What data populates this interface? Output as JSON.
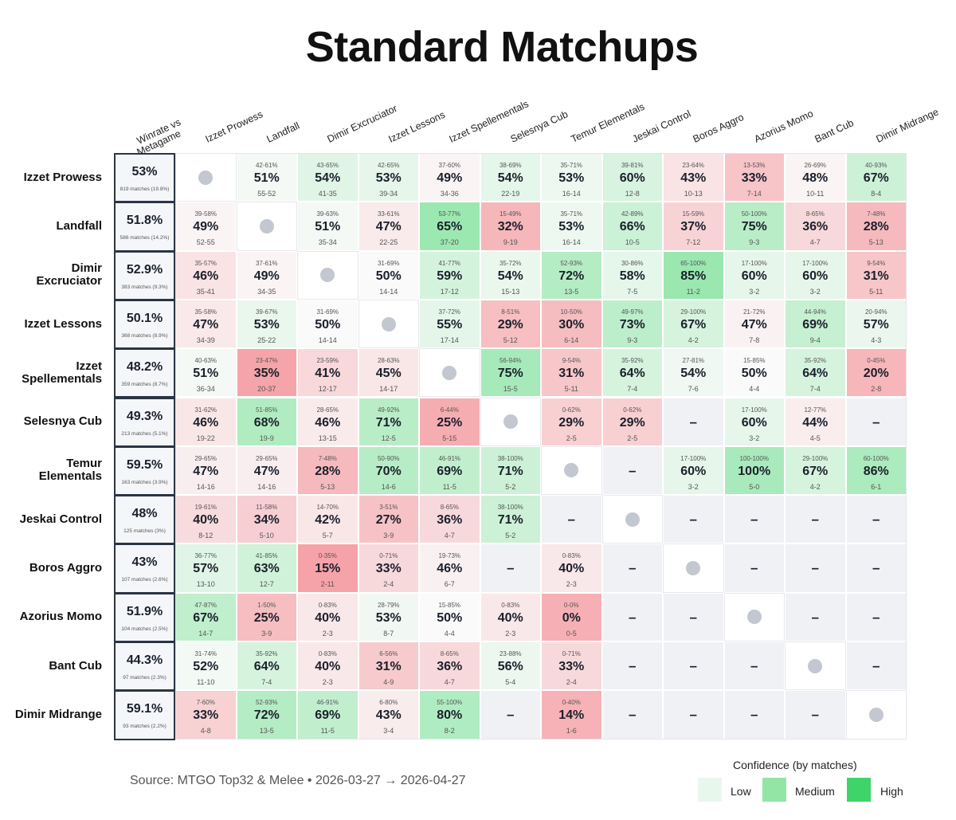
{
  "title": "Standard Matchups",
  "source": "Source: MTGO Top32 & Melee  •  2026-03-27 → 2026-04-27",
  "legend": {
    "title": "Confidence (by matches)",
    "items": [
      {
        "label": "Low",
        "color": "#e8f7ec"
      },
      {
        "label": "Medium",
        "color": "#93e5a6"
      },
      {
        "label": "High",
        "color": "#3fd469"
      }
    ]
  },
  "colors": {
    "na": "#f0f1f4",
    "diag": "#ffffff",
    "dot": "#c2c7d0",
    "winrate_border": "#2b3445"
  },
  "chart_data": {
    "type": "heatmap",
    "title": "Standard Matchups",
    "x_header": [
      "Winrate vs",
      "Metagame"
    ],
    "columns": [
      "Izzet Prowess",
      "Landfall",
      "Dimir Excruciator",
      "Izzet Lessons",
      "Izzet Spellementals",
      "Selesnya Cub",
      "Temur Elementals",
      "Jeskai Control",
      "Boros Aggro",
      "Azorius Momo",
      "Bant Cub",
      "Dimir Midrange"
    ],
    "rows": [
      {
        "name": [
          "Izzet Prowess"
        ],
        "winrate": "53%",
        "matches": "819 matches (19.8%)",
        "cells": [
          null,
          [
            "42-61%",
            "51%",
            "55-52"
          ],
          [
            "43-65%",
            "54%",
            "41-35"
          ],
          [
            "42-65%",
            "53%",
            "39-34"
          ],
          [
            "37-60%",
            "49%",
            "34-36"
          ],
          [
            "38-69%",
            "54%",
            "22-19"
          ],
          [
            "35-71%",
            "53%",
            "16-14"
          ],
          [
            "39-81%",
            "60%",
            "12-8"
          ],
          [
            "23-64%",
            "43%",
            "10-13"
          ],
          [
            "13-53%",
            "33%",
            "7-14"
          ],
          [
            "26-69%",
            "48%",
            "10-11"
          ],
          [
            "40-93%",
            "67%",
            "8-4"
          ]
        ]
      },
      {
        "name": [
          "Landfall"
        ],
        "winrate": "51.8%",
        "matches": "586 matches (14.2%)",
        "cells": [
          [
            "39-58%",
            "49%",
            "52-55"
          ],
          null,
          [
            "39-63%",
            "51%",
            "35-34"
          ],
          [
            "33-61%",
            "47%",
            "22-25"
          ],
          [
            "53-77%",
            "65%",
            "37-20"
          ],
          [
            "15-49%",
            "32%",
            "9-19"
          ],
          [
            "35-71%",
            "53%",
            "16-14"
          ],
          [
            "42-89%",
            "66%",
            "10-5"
          ],
          [
            "15-59%",
            "37%",
            "7-12"
          ],
          [
            "50-100%",
            "75%",
            "9-3"
          ],
          [
            "8-65%",
            "36%",
            "4-7"
          ],
          [
            "7-48%",
            "28%",
            "5-13"
          ]
        ]
      },
      {
        "name": [
          "Dimir",
          "Excruciator"
        ],
        "winrate": "52.9%",
        "matches": "383 matches (9.3%)",
        "cells": [
          [
            "35-57%",
            "46%",
            "35-41"
          ],
          [
            "37-61%",
            "49%",
            "34-35"
          ],
          null,
          [
            "31-69%",
            "50%",
            "14-14"
          ],
          [
            "41-77%",
            "59%",
            "17-12"
          ],
          [
            "35-72%",
            "54%",
            "15-13"
          ],
          [
            "52-93%",
            "72%",
            "13-5"
          ],
          [
            "30-86%",
            "58%",
            "7-5"
          ],
          [
            "65-100%",
            "85%",
            "11-2"
          ],
          [
            "17-100%",
            "60%",
            "3-2"
          ],
          [
            "17-100%",
            "60%",
            "3-2"
          ],
          [
            "9-54%",
            "31%",
            "5-11"
          ]
        ]
      },
      {
        "name": [
          "Izzet Lessons"
        ],
        "winrate": "50.1%",
        "matches": "368 matches (8.9%)",
        "cells": [
          [
            "35-58%",
            "47%",
            "34-39"
          ],
          [
            "39-67%",
            "53%",
            "25-22"
          ],
          [
            "31-69%",
            "50%",
            "14-14"
          ],
          null,
          [
            "37-72%",
            "55%",
            "17-14"
          ],
          [
            "8-51%",
            "29%",
            "5-12"
          ],
          [
            "10-50%",
            "30%",
            "6-14"
          ],
          [
            "49-97%",
            "73%",
            "9-3"
          ],
          [
            "29-100%",
            "67%",
            "4-2"
          ],
          [
            "21-72%",
            "47%",
            "7-8"
          ],
          [
            "44-94%",
            "69%",
            "9-4"
          ],
          [
            "20-94%",
            "57%",
            "4-3"
          ]
        ]
      },
      {
        "name": [
          "Izzet",
          "Spellementals"
        ],
        "winrate": "48.2%",
        "matches": "359 matches (8.7%)",
        "cells": [
          [
            "40-63%",
            "51%",
            "36-34"
          ],
          [
            "23-47%",
            "35%",
            "20-37"
          ],
          [
            "23-59%",
            "41%",
            "12-17"
          ],
          [
            "28-63%",
            "45%",
            "14-17"
          ],
          null,
          [
            "56-94%",
            "75%",
            "15-5"
          ],
          [
            "9-54%",
            "31%",
            "5-11"
          ],
          [
            "35-92%",
            "64%",
            "7-4"
          ],
          [
            "27-81%",
            "54%",
            "7-6"
          ],
          [
            "15-85%",
            "50%",
            "4-4"
          ],
          [
            "35-92%",
            "64%",
            "7-4"
          ],
          [
            "0-45%",
            "20%",
            "2-8"
          ]
        ]
      },
      {
        "name": [
          "Selesnya Cub"
        ],
        "winrate": "49.3%",
        "matches": "213 matches (5.1%)",
        "cells": [
          [
            "31-62%",
            "46%",
            "19-22"
          ],
          [
            "51-85%",
            "68%",
            "19-9"
          ],
          [
            "28-65%",
            "46%",
            "13-15"
          ],
          [
            "49-92%",
            "71%",
            "12-5"
          ],
          [
            "6-44%",
            "25%",
            "5-15"
          ],
          null,
          [
            "0-62%",
            "29%",
            "2-5"
          ],
          [
            "0-62%",
            "29%",
            "2-5"
          ],
          "–",
          [
            "17-100%",
            "60%",
            "3-2"
          ],
          [
            "12-77%",
            "44%",
            "4-5"
          ],
          "–"
        ]
      },
      {
        "name": [
          "Temur",
          "Elementals"
        ],
        "winrate": "59.5%",
        "matches": "163 matches (3.9%)",
        "cells": [
          [
            "29-65%",
            "47%",
            "14-16"
          ],
          [
            "29-65%",
            "47%",
            "14-16"
          ],
          [
            "7-48%",
            "28%",
            "5-13"
          ],
          [
            "50-90%",
            "70%",
            "14-6"
          ],
          [
            "46-91%",
            "69%",
            "11-5"
          ],
          [
            "38-100%",
            "71%",
            "5-2"
          ],
          null,
          "–",
          [
            "17-100%",
            "60%",
            "3-2"
          ],
          [
            "100-100%",
            "100%",
            "5-0"
          ],
          [
            "29-100%",
            "67%",
            "4-2"
          ],
          [
            "60-100%",
            "86%",
            "6-1"
          ]
        ]
      },
      {
        "name": [
          "Jeskai Control"
        ],
        "winrate": "48%",
        "matches": "125 matches (3%)",
        "cells": [
          [
            "19-61%",
            "40%",
            "8-12"
          ],
          [
            "11-58%",
            "34%",
            "5-10"
          ],
          [
            "14-70%",
            "42%",
            "5-7"
          ],
          [
            "3-51%",
            "27%",
            "3-9"
          ],
          [
            "8-65%",
            "36%",
            "4-7"
          ],
          [
            "38-100%",
            "71%",
            "5-2"
          ],
          "–",
          null,
          "–",
          "–",
          "–",
          "–"
        ]
      },
      {
        "name": [
          "Boros Aggro"
        ],
        "winrate": "43%",
        "matches": "107 matches (2.6%)",
        "cells": [
          [
            "36-77%",
            "57%",
            "13-10"
          ],
          [
            "41-85%",
            "63%",
            "12-7"
          ],
          [
            "0-35%",
            "15%",
            "2-11"
          ],
          [
            "0-71%",
            "33%",
            "2-4"
          ],
          [
            "19-73%",
            "46%",
            "6-7"
          ],
          "–",
          [
            "0-83%",
            "40%",
            "2-3"
          ],
          "–",
          null,
          "–",
          "–",
          "–"
        ]
      },
      {
        "name": [
          "Azorius Momo"
        ],
        "winrate": "51.9%",
        "matches": "104 matches (2.5%)",
        "cells": [
          [
            "47-87%",
            "67%",
            "14-7"
          ],
          [
            "1-50%",
            "25%",
            "3-9"
          ],
          [
            "0-83%",
            "40%",
            "2-3"
          ],
          [
            "28-79%",
            "53%",
            "8-7"
          ],
          [
            "15-85%",
            "50%",
            "4-4"
          ],
          [
            "0-83%",
            "40%",
            "2-3"
          ],
          [
            "0-0%",
            "0%",
            "0-5"
          ],
          "–",
          "–",
          null,
          "–",
          "–"
        ]
      },
      {
        "name": [
          "Bant Cub"
        ],
        "winrate": "44.3%",
        "matches": "97 matches (2.3%)",
        "cells": [
          [
            "31-74%",
            "52%",
            "11-10"
          ],
          [
            "35-92%",
            "64%",
            "7-4"
          ],
          [
            "0-83%",
            "40%",
            "2-3"
          ],
          [
            "6-56%",
            "31%",
            "4-9"
          ],
          [
            "8-65%",
            "36%",
            "4-7"
          ],
          [
            "23-88%",
            "56%",
            "5-4"
          ],
          [
            "0-71%",
            "33%",
            "2-4"
          ],
          "–",
          "–",
          "–",
          null,
          "–"
        ]
      },
      {
        "name": [
          "Dimir Midrange"
        ],
        "winrate": "59.1%",
        "matches": "93 matches (2.2%)",
        "cells": [
          [
            "7-60%",
            "33%",
            "4-8"
          ],
          [
            "52-93%",
            "72%",
            "13-5"
          ],
          [
            "46-91%",
            "69%",
            "11-5"
          ],
          [
            "6-80%",
            "43%",
            "3-4"
          ],
          [
            "55-100%",
            "80%",
            "8-2"
          ],
          "–",
          [
            "0-40%",
            "14%",
            "1-6"
          ],
          "–",
          "–",
          "–",
          "–",
          null
        ]
      }
    ]
  }
}
